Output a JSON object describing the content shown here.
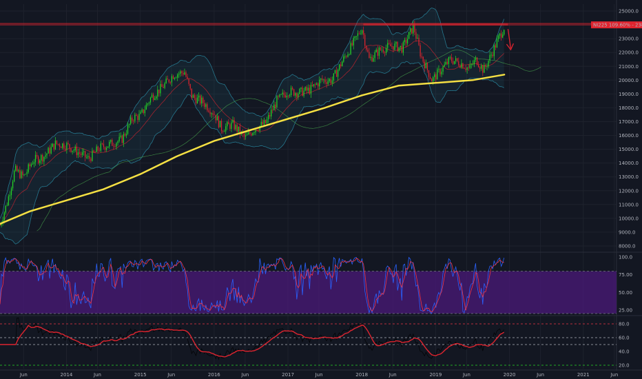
{
  "chart_data": {
    "type": "candlestick",
    "symbol_label": "NI225 109.60% - 23864.9",
    "price_axis": {
      "ylim": [
        7600,
        25500
      ],
      "ticks": [
        8000,
        9000,
        10000,
        11000,
        12000,
        13000,
        14000,
        15000,
        16000,
        17000,
        18000,
        19000,
        20000,
        21000,
        22000,
        23000,
        24000,
        25000
      ],
      "tick_labels": [
        "8000.0",
        "9000.0",
        "10000.0",
        "11000.0",
        "12000.0",
        "13000.0",
        "14000.0",
        "15000.0",
        "16000.0",
        "17000.0",
        "18000.0",
        "19000.0",
        "20000.0",
        "21000.0",
        "22000.0",
        "23000.0",
        "24000.0",
        "25000.0"
      ]
    },
    "time_axis": {
      "ticks": [
        2013.42,
        2014.0,
        2014.42,
        2015.0,
        2015.42,
        2016.0,
        2016.42,
        2017.0,
        2017.42,
        2018.0,
        2018.42,
        2019.0,
        2019.42,
        2020.0,
        2020.42,
        2021.0,
        2021.42
      ],
      "tick_labels": [
        "Jun",
        "2014",
        "Jun",
        "2015",
        "Jun",
        "2016",
        "Jun",
        "2017",
        "Jun",
        "2018",
        "Jun",
        "2019",
        "Jun",
        "2020",
        "Jun",
        "2021",
        "Jun"
      ],
      "xlim": [
        2013.1,
        2021.45
      ]
    },
    "close_series": [
      [
        2013.1,
        9500
      ],
      [
        2013.2,
        11200
      ],
      [
        2013.3,
        13500
      ],
      [
        2013.42,
        13000
      ],
      [
        2013.55,
        14200
      ],
      [
        2013.7,
        14500
      ],
      [
        2013.85,
        15400
      ],
      [
        2014.0,
        15300
      ],
      [
        2014.15,
        14800
      ],
      [
        2014.3,
        14300
      ],
      [
        2014.45,
        15100
      ],
      [
        2014.6,
        15400
      ],
      [
        2014.75,
        15700
      ],
      [
        2014.9,
        17300
      ],
      [
        2015.0,
        17400
      ],
      [
        2015.15,
        18800
      ],
      [
        2015.3,
        19500
      ],
      [
        2015.45,
        20400
      ],
      [
        2015.6,
        20600
      ],
      [
        2015.7,
        18800
      ],
      [
        2015.85,
        18400
      ],
      [
        2016.0,
        17600
      ],
      [
        2016.1,
        16500
      ],
      [
        2016.25,
        16800
      ],
      [
        2016.42,
        15800
      ],
      [
        2016.55,
        16500
      ],
      [
        2016.7,
        16900
      ],
      [
        2016.85,
        18500
      ],
      [
        2017.0,
        19200
      ],
      [
        2017.15,
        19100
      ],
      [
        2017.3,
        19300
      ],
      [
        2017.45,
        20000
      ],
      [
        2017.6,
        20000
      ],
      [
        2017.75,
        21500
      ],
      [
        2017.9,
        22800
      ],
      [
        2018.0,
        23800
      ],
      [
        2018.1,
        21500
      ],
      [
        2018.25,
        22200
      ],
      [
        2018.42,
        22500
      ],
      [
        2018.55,
        22300
      ],
      [
        2018.7,
        23900
      ],
      [
        2018.8,
        21800
      ],
      [
        2018.95,
        20000
      ],
      [
        2019.05,
        20600
      ],
      [
        2019.2,
        21500
      ],
      [
        2019.35,
        21200
      ],
      [
        2019.45,
        20800
      ],
      [
        2019.55,
        21500
      ],
      [
        2019.65,
        20700
      ],
      [
        2019.75,
        21800
      ],
      [
        2019.85,
        23000
      ],
      [
        2019.93,
        23864
      ]
    ],
    "series": [
      {
        "name": "200-period MA",
        "color": "#f5e043",
        "values": [
          [
            2013.1,
            9600
          ],
          [
            2013.5,
            10500
          ],
          [
            2014.0,
            11300
          ],
          [
            2014.5,
            12100
          ],
          [
            2015.0,
            13200
          ],
          [
            2015.5,
            14500
          ],
          [
            2016.0,
            15600
          ],
          [
            2016.5,
            16400
          ],
          [
            2017.0,
            17200
          ],
          [
            2017.5,
            18000
          ],
          [
            2018.0,
            18900
          ],
          [
            2018.5,
            19600
          ],
          [
            2019.0,
            19800
          ],
          [
            2019.5,
            20000
          ],
          [
            2019.93,
            20400
          ]
        ]
      }
    ],
    "resistance_levels": [
      24100,
      24000
    ],
    "stochastic": {
      "ylim": [
        20,
        105
      ],
      "ticks": [
        25,
        50,
        75,
        100
      ],
      "tick_labels": [
        "25.00",
        "50.00",
        "75.00",
        "100.0"
      ],
      "band": [
        20,
        80
      ]
    },
    "rsi": {
      "ylim": [
        15,
        90
      ],
      "ticks": [
        20,
        40,
        60,
        80
      ],
      "tick_labels": [
        "20.0",
        "40.0",
        "60.0",
        "80.0"
      ],
      "levels": [
        80,
        60,
        50,
        20
      ]
    },
    "colors": {
      "background": "#131722",
      "up": "#26d926",
      "down": "#e0242f",
      "ma": "#f5e043",
      "bands": "#2a8fa8",
      "label_bg": "#e0242f",
      "stoch_band": "#4b1a7a"
    }
  }
}
